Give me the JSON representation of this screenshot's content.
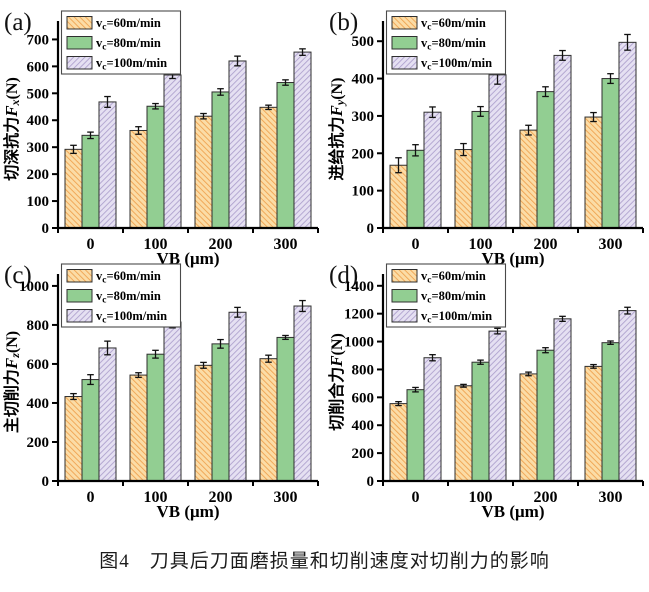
{
  "caption": "图4　刀具后刀面磨损量和切削速度对切削力的影响",
  "styles": {
    "axis_color": "#000000",
    "edge_color": "#2f2f2f",
    "error_color": "#111111",
    "series_styles": [
      {
        "fill": "#FBDCA6",
        "hatch": "#EFA04C",
        "hatch_dir": "fwd"
      },
      {
        "fill": "#92CE92",
        "hatch": null,
        "hatch_dir": null
      },
      {
        "fill": "#E5E0F2",
        "hatch": "#AC9FCC",
        "hatch_dir": "back"
      }
    ]
  },
  "chart_data": [
    {
      "panel": "(a)",
      "type": "bar",
      "xlabel": "VB (μm)",
      "ylabel": {
        "prefix": "切深抗力",
        "symbol": "F",
        "sub": "x",
        "unit": "(N)"
      },
      "categories": [
        "0",
        "100",
        "200",
        "300"
      ],
      "yticks": [
        0,
        100,
        200,
        300,
        400,
        500,
        600,
        700
      ],
      "axis_max": 735,
      "legend_position": "top-left",
      "grid": false,
      "series": [
        {
          "name": "vc=60m/min",
          "values": [
            292,
            362,
            415,
            448
          ],
          "errors": [
            15,
            14,
            10,
            8
          ]
        },
        {
          "name": "vc=80m/min",
          "values": [
            344,
            452,
            505,
            540
          ],
          "errors": [
            12,
            10,
            12,
            10
          ]
        },
        {
          "name": "vc=100m/min",
          "values": [
            468,
            568,
            620,
            653
          ],
          "errors": [
            20,
            13,
            18,
            12
          ]
        }
      ]
    },
    {
      "panel": "(b)",
      "type": "bar",
      "xlabel": "VB (μm)",
      "ylabel": {
        "prefix": "进给抗力",
        "symbol": "F",
        "sub": "y",
        "unit": "(N)"
      },
      "categories": [
        "0",
        "100",
        "200",
        "300"
      ],
      "yticks": [
        0,
        100,
        200,
        300,
        400,
        500
      ],
      "axis_max": 530,
      "legend_position": "top-left",
      "grid": false,
      "series": [
        {
          "name": "vc=60m/min",
          "values": [
            168,
            210,
            262,
            297
          ],
          "errors": [
            20,
            16,
            13,
            12
          ]
        },
        {
          "name": "vc=80m/min",
          "values": [
            208,
            312,
            365,
            400
          ],
          "errors": [
            15,
            13,
            13,
            13
          ]
        },
        {
          "name": "vc=100m/min",
          "values": [
            310,
            410,
            462,
            497
          ],
          "errors": [
            14,
            25,
            13,
            21
          ]
        }
      ]
    },
    {
      "panel": "(c)",
      "type": "bar",
      "xlabel": "VB (μm)",
      "ylabel": {
        "prefix": "主切削力",
        "symbol": "F",
        "sub": "z",
        "unit": "(N)"
      },
      "categories": [
        "0",
        "100",
        "200",
        "300"
      ],
      "yticks": [
        0,
        200,
        400,
        600,
        800,
        1000
      ],
      "axis_max": 1015,
      "legend_position": "top-left",
      "grid": false,
      "series": [
        {
          "name": "vc=60m/min",
          "values": [
            433,
            543,
            593,
            627
          ],
          "errors": [
            15,
            12,
            15,
            18
          ]
        },
        {
          "name": "vc=80m/min",
          "values": [
            520,
            650,
            703,
            736
          ],
          "errors": [
            25,
            20,
            22,
            10
          ]
        },
        {
          "name": "vc=100m/min",
          "values": [
            682,
            815,
            865,
            897
          ],
          "errors": [
            35,
            30,
            25,
            28
          ]
        }
      ]
    },
    {
      "panel": "(d)",
      "type": "bar",
      "xlabel": "VB (μm)",
      "ylabel": {
        "prefix": "切削合力",
        "symbol": "F",
        "sub": "",
        "unit": "(N)"
      },
      "categories": [
        "0",
        "100",
        "200",
        "300"
      ],
      "yticks": [
        0,
        200,
        400,
        600,
        800,
        1000,
        1200,
        1400
      ],
      "axis_max": 1420,
      "legend_position": "top-left",
      "grid": false,
      "series": [
        {
          "name": "vc=60m/min",
          "values": [
            555,
            683,
            768,
            822
          ],
          "errors": [
            14,
            10,
            13,
            13
          ]
        },
        {
          "name": "vc=80m/min",
          "values": [
            655,
            852,
            938,
            992
          ],
          "errors": [
            16,
            15,
            18,
            12
          ]
        },
        {
          "name": "vc=100m/min",
          "values": [
            884,
            1075,
            1163,
            1222
          ],
          "errors": [
            22,
            20,
            18,
            24
          ]
        }
      ]
    }
  ]
}
